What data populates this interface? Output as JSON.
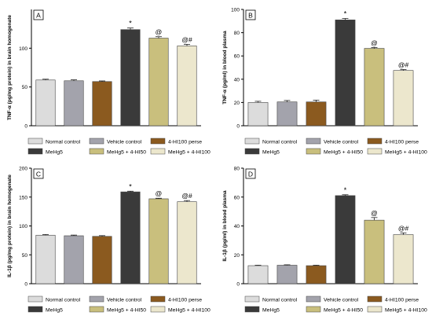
{
  "figure": {
    "bar_colors": [
      "#dcdcdc",
      "#a3a3ac",
      "#8b5a1f",
      "#3a3a3a",
      "#c9bf7d",
      "#ece7cd"
    ],
    "legend_labels": [
      "Normal control",
      "Vehicle control",
      "4-HI100 perse",
      "MeHg5",
      "MeHg5 + 4-HI50",
      "MeHg5 + 4-HI100"
    ]
  },
  "chart_data": [
    {
      "type": "bar",
      "panel_label": "A",
      "ylabel": "TNF-α (pg/mg protein) in brain homogenate",
      "ylim": [
        0,
        150
      ],
      "yticks": [
        0,
        50,
        100
      ],
      "series": [
        {
          "name": "Normal control",
          "value": 59,
          "error": 1.0,
          "annotation": ""
        },
        {
          "name": "Vehicle control",
          "value": 58,
          "error": 1.2,
          "annotation": ""
        },
        {
          "name": "4-HI100 perse",
          "value": 57,
          "error": 0.8,
          "annotation": ""
        },
        {
          "name": "MeHg5",
          "value": 124,
          "error": 2.0,
          "annotation": "*"
        },
        {
          "name": "MeHg5 + 4-HI50",
          "value": 113,
          "error": 1.8,
          "annotation": "@"
        },
        {
          "name": "MeHg5 + 4-HI100",
          "value": 103,
          "error": 2.0,
          "annotation": "@#"
        }
      ]
    },
    {
      "type": "bar",
      "panel_label": "B",
      "ylabel": "TNF-α (pg/ml) in blood plasma",
      "ylim": [
        0,
        100
      ],
      "yticks": [
        0,
        20,
        40,
        60,
        80,
        100
      ],
      "series": [
        {
          "name": "Normal control",
          "value": 20,
          "error": 1.0,
          "annotation": ""
        },
        {
          "name": "Vehicle control",
          "value": 20.5,
          "error": 1.2,
          "annotation": ""
        },
        {
          "name": "4-HI100 perse",
          "value": 20.5,
          "error": 1.5,
          "annotation": ""
        },
        {
          "name": "MeHg5",
          "value": 91,
          "error": 1.2,
          "annotation": "*"
        },
        {
          "name": "MeHg5 + 4-HI50",
          "value": 66.5,
          "error": 0.8,
          "annotation": "@"
        },
        {
          "name": "MeHg5 + 4-HI100",
          "value": 47.5,
          "error": 0.8,
          "annotation": "@#"
        }
      ]
    },
    {
      "type": "bar",
      "panel_label": "C",
      "ylabel": "IL-1β (pg/mg protein) in brain homogenate",
      "ylim": [
        0,
        200
      ],
      "yticks": [
        0,
        50,
        100,
        150,
        200
      ],
      "series": [
        {
          "name": "Normal control",
          "value": 84,
          "error": 1.2,
          "annotation": ""
        },
        {
          "name": "Vehicle control",
          "value": 83,
          "error": 1.2,
          "annotation": ""
        },
        {
          "name": "4-HI100 perse",
          "value": 82,
          "error": 1.2,
          "annotation": ""
        },
        {
          "name": "MeHg5",
          "value": 159,
          "error": 1.2,
          "annotation": "*"
        },
        {
          "name": "MeHg5 + 4-HI50",
          "value": 147,
          "error": 1.0,
          "annotation": "@"
        },
        {
          "name": "MeHg5 + 4-HI100",
          "value": 142,
          "error": 2.0,
          "annotation": "@#"
        }
      ]
    },
    {
      "type": "bar",
      "panel_label": "D",
      "ylabel": "IL-1β (pg/ml) in blood plasma",
      "ylim": [
        0,
        80
      ],
      "yticks": [
        0,
        20,
        40,
        60,
        80
      ],
      "series": [
        {
          "name": "Normal control",
          "value": 12.5,
          "error": 0.3,
          "annotation": ""
        },
        {
          "name": "Vehicle control",
          "value": 12.8,
          "error": 0.3,
          "annotation": ""
        },
        {
          "name": "4-HI100 perse",
          "value": 12.5,
          "error": 0.3,
          "annotation": ""
        },
        {
          "name": "MeHg5",
          "value": 61,
          "error": 0.6,
          "annotation": "*"
        },
        {
          "name": "MeHg5 + 4-HI50",
          "value": 44,
          "error": 1.8,
          "annotation": "@"
        },
        {
          "name": "MeHg5 + 4-HI100",
          "value": 34,
          "error": 1.2,
          "annotation": "@#"
        }
      ]
    }
  ]
}
